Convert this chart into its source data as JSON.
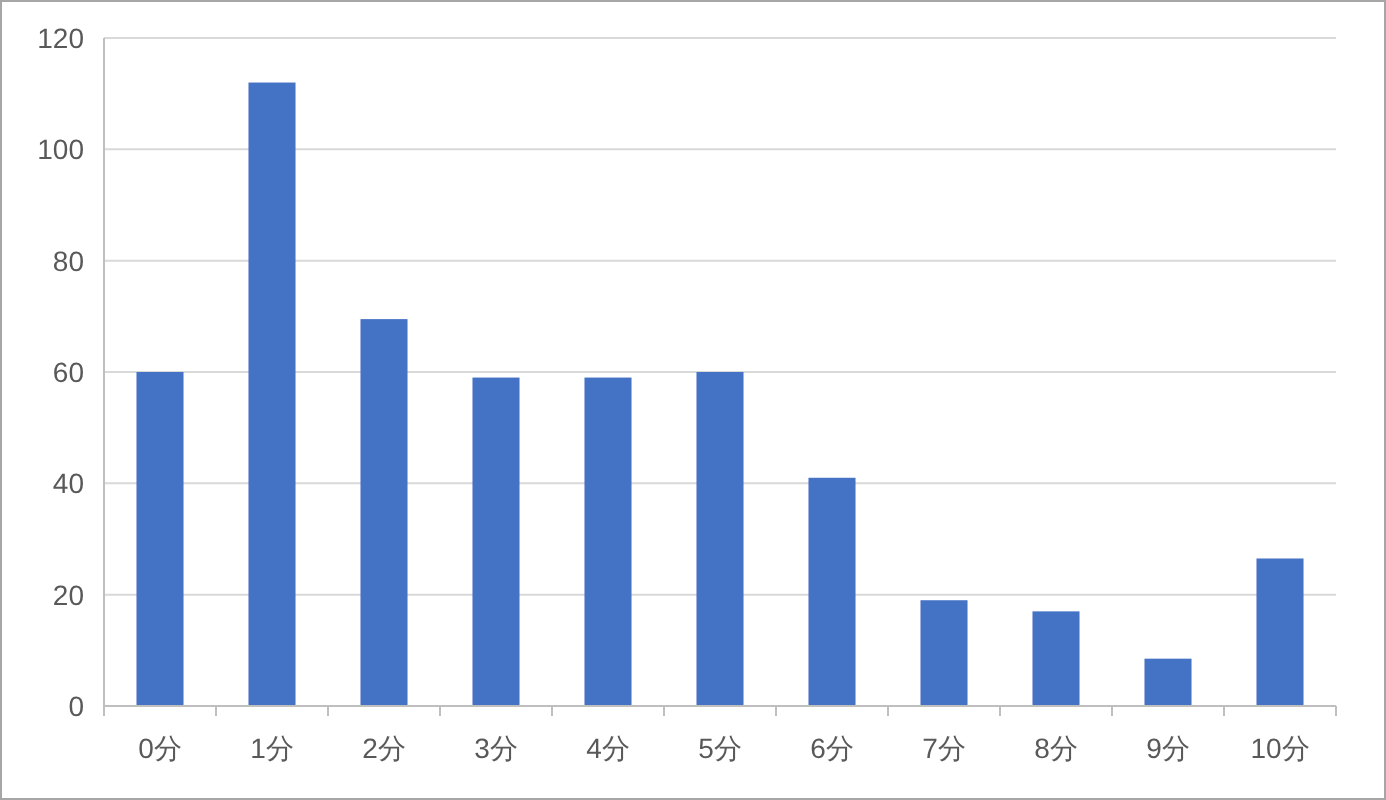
{
  "chart_data": {
    "type": "bar",
    "categories": [
      "0分",
      "1分",
      "2分",
      "3分",
      "4分",
      "5分",
      "6分",
      "7分",
      "8分",
      "9分",
      "10分"
    ],
    "values": [
      60,
      112,
      69.5,
      59,
      59,
      60,
      41,
      19,
      17,
      8.5,
      26.5
    ],
    "color": "#4472c4",
    "ylim": [
      0,
      120
    ],
    "yticks": [
      0,
      20,
      40,
      60,
      80,
      100,
      120
    ],
    "grid": "y"
  }
}
